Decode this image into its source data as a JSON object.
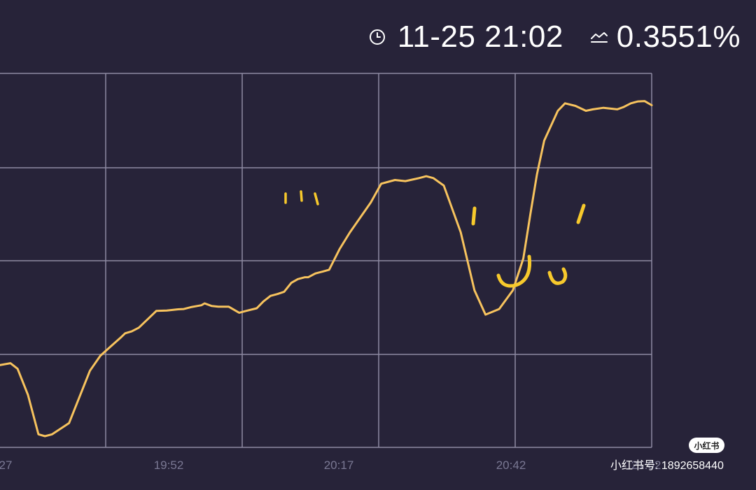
{
  "header": {
    "time": "11-25 21:02",
    "rate": "0.3551%",
    "clock_icon": "clock-icon",
    "rate_icon": "trend-icon"
  },
  "chart_data": {
    "type": "line",
    "title": "",
    "xlabel": "",
    "ylabel": "",
    "x_tick_labels": [
      "27",
      "19:52",
      "20:17",
      "20:42",
      "21:02"
    ],
    "x_minutes_range": [
      0,
      100
    ],
    "ylim": [
      0,
      100
    ],
    "grid": true,
    "series": [
      {
        "name": "rate",
        "color": "#f7c35e",
        "x": [
          0,
          1.6,
          2.7,
          4.3,
          5.9,
          6.9,
          8.0,
          10.6,
          13.8,
          15.4,
          17.0,
          18.6,
          19.2,
          20.2,
          21.3,
          23.4,
          24.0,
          25.6,
          27.2,
          28.2,
          29.3,
          30.9,
          31.4,
          32.5,
          33.5,
          35.1,
          36.7,
          37.8,
          39.4,
          40.4,
          41.5,
          42.6,
          43.6,
          44.7,
          45.7,
          46.8,
          47.3,
          48.4,
          49.5,
          50.5,
          52.1,
          53.7,
          55.3,
          56.9,
          58.5,
          60.6,
          62.2,
          63.3,
          64.3,
          65.4,
          66.5,
          68.1,
          70.7,
          72.8,
          74.5,
          76.6,
          78.7,
          80.3,
          81.4,
          82.4,
          83.5,
          85.6,
          86.7,
          88.3,
          89.9,
          91.0,
          92.6,
          93.6,
          94.7,
          95.7,
          96.8,
          97.9,
          98.9,
          100
        ],
        "y": [
          22,
          22.5,
          21,
          14,
          3.5,
          3,
          3.5,
          6.5,
          20.5,
          24.5,
          27,
          29.5,
          30.5,
          31,
          32,
          35.5,
          36.5,
          36.6,
          36.9,
          37,
          37.5,
          38,
          38.5,
          37.8,
          37.6,
          37.6,
          36,
          36.5,
          37.2,
          39,
          40.5,
          41,
          41.6,
          44,
          45,
          45.5,
          45.5,
          46.5,
          47,
          47.5,
          53,
          57.5,
          61.5,
          65.5,
          70.5,
          71.5,
          71.2,
          71.6,
          72,
          72.5,
          72,
          70,
          57.5,
          42,
          35.5,
          37,
          42,
          50.5,
          62.5,
          73,
          82,
          90,
          92,
          91.3,
          90,
          90.4,
          90.8,
          90.6,
          90.4,
          91,
          92,
          92.5,
          92.6,
          91.5
        ],
        "y2": [
          null
        ]
      }
    ]
  }
}
